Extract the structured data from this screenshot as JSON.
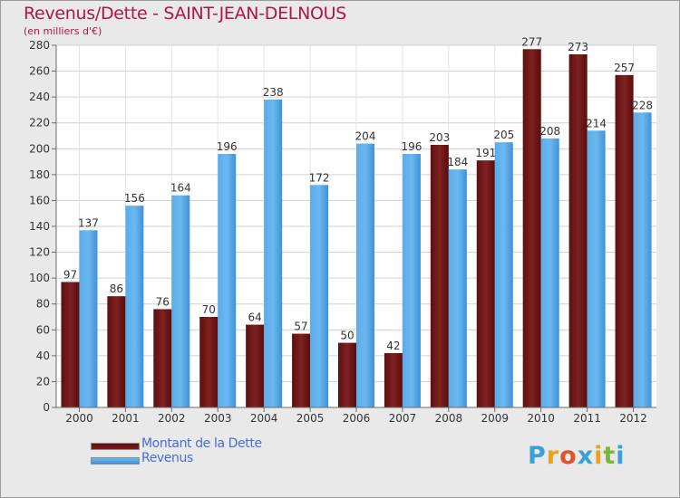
{
  "title": "Revenus/Dette - SAINT-JEAN-DELNOUS",
  "subtitle": "(en milliers d'€)",
  "colors": {
    "title": "#b0154a",
    "dette": "#7a1a1a",
    "revenus": "#4ea3e6",
    "legend_text": "#4b6bdc"
  },
  "legend": {
    "dette_label": "Montant de la Dette",
    "revenus_label": "Revenus"
  },
  "logo": {
    "letters": [
      "P",
      "r",
      "o",
      "x",
      "i",
      "t",
      "i"
    ],
    "colors": [
      "#3aa0d8",
      "#f0a020",
      "#e0522a",
      "#3aa0d8",
      "#f0a020",
      "#7ab53a",
      "#3aa0d8"
    ]
  },
  "chart_data": {
    "type": "bar",
    "categories": [
      "2000",
      "2001",
      "2002",
      "2003",
      "2004",
      "2005",
      "2006",
      "2007",
      "2008",
      "2009",
      "2010",
      "2011",
      "2012"
    ],
    "series": [
      {
        "name": "Montant de la Dette",
        "values": [
          97,
          86,
          76,
          70,
          64,
          57,
          50,
          42,
          203,
          191,
          277,
          273,
          257
        ]
      },
      {
        "name": "Revenus",
        "values": [
          137,
          156,
          164,
          196,
          238,
          172,
          204,
          196,
          184,
          205,
          208,
          214,
          228
        ]
      }
    ],
    "ylim": [
      0,
      280
    ],
    "yticks": [
      0,
      20,
      40,
      60,
      80,
      100,
      120,
      140,
      160,
      180,
      200,
      220,
      240,
      260,
      280
    ],
    "grid": true,
    "legend_position": "bottom-left"
  }
}
